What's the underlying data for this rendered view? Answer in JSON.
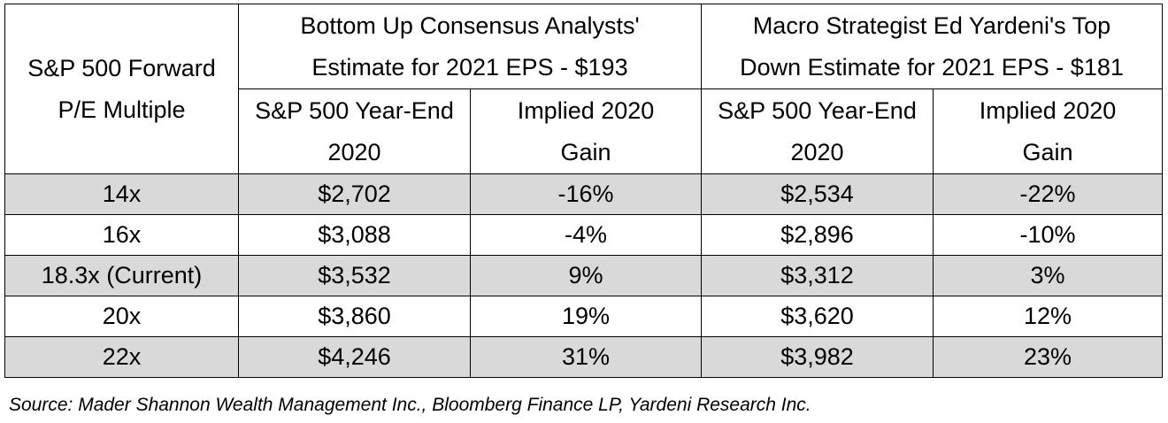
{
  "table": {
    "corner_header": [
      "S&P 500 Forward",
      "P/E Multiple"
    ],
    "group_headers": [
      [
        "Bottom Up Consensus Analysts'",
        "Estimate for 2021 EPS - $193"
      ],
      [
        "Macro Strategist Ed Yardeni's Top",
        "Down Estimate for 2021 EPS - $181"
      ]
    ],
    "sub_headers": [
      [
        "S&P 500 Year-End",
        "2020"
      ],
      [
        "Implied 2020",
        "Gain"
      ],
      [
        "S&P 500 Year-End",
        "2020"
      ],
      [
        "Implied 2020",
        "Gain"
      ]
    ],
    "rows": [
      [
        "14x",
        "$2,702",
        "-16%",
        "$2,534",
        "-22%"
      ],
      [
        "16x",
        "$3,088",
        "-4%",
        "$2,896",
        "-10%"
      ],
      [
        "18.3x (Current)",
        "$3,532",
        "9%",
        "$3,312",
        "3%"
      ],
      [
        "20x",
        "$3,860",
        "19%",
        "$3,620",
        "12%"
      ],
      [
        "22x",
        "$4,246",
        "31%",
        "$3,982",
        "23%"
      ]
    ],
    "shaded_row_color": "#d9d9d9"
  },
  "source": "Source: Mader Shannon Wealth Management Inc., Bloomberg Finance LP, Yardeni Research Inc."
}
